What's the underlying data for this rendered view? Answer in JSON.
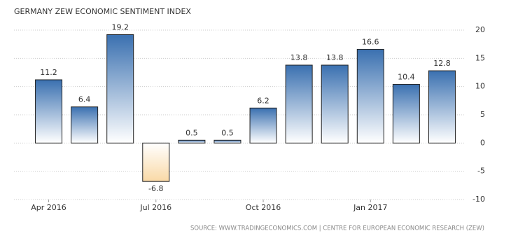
{
  "chart_data": {
    "type": "bar",
    "title": "GERMANY ZEW ECONOMIC SENTIMENT INDEX",
    "source": "SOURCE: WWW.TRADINGECONOMICS.COM | CENTRE FOR EUROPEAN ECONOMIC RESEARCH (ZEW)",
    "categories": [
      "Apr 2016",
      null,
      null,
      "Jul 2016",
      null,
      null,
      "Oct 2016",
      null,
      null,
      "Jan 2017",
      null,
      null
    ],
    "values": [
      11.2,
      6.4,
      19.2,
      -6.8,
      0.5,
      0.5,
      6.2,
      13.8,
      13.8,
      16.6,
      10.4,
      12.8
    ],
    "color": "#3a70b0",
    "negative_color": "#f9d9a6",
    "ylim": [
      -10,
      20
    ],
    "yticks": [
      -10,
      -5,
      0,
      5,
      10,
      15,
      20
    ],
    "grid": true
  }
}
